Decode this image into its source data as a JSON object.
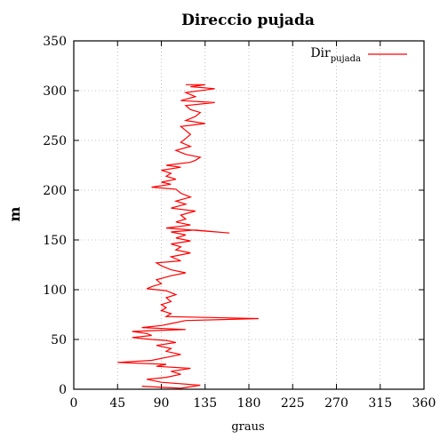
{
  "chart_data": {
    "type": "line",
    "title": "Direccio pujada",
    "xlabel": "graus",
    "ylabel": "m",
    "xlim": [
      0,
      360
    ],
    "ylim": [
      0,
      350
    ],
    "xticks": [
      0,
      45,
      90,
      135,
      180,
      225,
      270,
      315,
      360
    ],
    "yticks": [
      0,
      50,
      100,
      150,
      200,
      250,
      300,
      350
    ],
    "grid": true,
    "legend_position": "top-right",
    "series": [
      {
        "name": "Dir",
        "name_subscript": "pujada",
        "color": "#ff0000",
        "points": [
          [
            70,
            3
          ],
          [
            110,
            1
          ],
          [
            130,
            4
          ],
          [
            90,
            7
          ],
          [
            75,
            10
          ],
          [
            95,
            12
          ],
          [
            110,
            15
          ],
          [
            100,
            18
          ],
          [
            120,
            21
          ],
          [
            85,
            23
          ],
          [
            95,
            25
          ],
          [
            45,
            27
          ],
          [
            80,
            29
          ],
          [
            95,
            32
          ],
          [
            110,
            35
          ],
          [
            95,
            38
          ],
          [
            100,
            41
          ],
          [
            85,
            44
          ],
          [
            105,
            47
          ],
          [
            95,
            49
          ],
          [
            80,
            50
          ],
          [
            60,
            52
          ],
          [
            80,
            54
          ],
          [
            75,
            56
          ],
          [
            60,
            58
          ],
          [
            85,
            59
          ],
          [
            115,
            60
          ],
          [
            70,
            62
          ],
          [
            90,
            64
          ],
          [
            100,
            66
          ],
          [
            115,
            69
          ],
          [
            190,
            71
          ],
          [
            95,
            73
          ],
          [
            100,
            76
          ],
          [
            90,
            79
          ],
          [
            95,
            82
          ],
          [
            90,
            85
          ],
          [
            100,
            88
          ],
          [
            95,
            92
          ],
          [
            105,
            95
          ],
          [
            95,
            99
          ],
          [
            75,
            101
          ],
          [
            80,
            103
          ],
          [
            90,
            106
          ],
          [
            85,
            110
          ],
          [
            100,
            114
          ],
          [
            115,
            117
          ],
          [
            100,
            120
          ],
          [
            90,
            124
          ],
          [
            85,
            127
          ],
          [
            110,
            129
          ],
          [
            100,
            133
          ],
          [
            120,
            137
          ],
          [
            105,
            140
          ],
          [
            110,
            143
          ],
          [
            100,
            146
          ],
          [
            120,
            149
          ],
          [
            105,
            152
          ],
          [
            115,
            155
          ],
          [
            100,
            158
          ],
          [
            125,
            160
          ],
          [
            160,
            157
          ],
          [
            95,
            162
          ],
          [
            120,
            165
          ],
          [
            105,
            168
          ],
          [
            115,
            171
          ],
          [
            110,
            175
          ],
          [
            125,
            179
          ],
          [
            100,
            182
          ],
          [
            115,
            186
          ],
          [
            105,
            189
          ],
          [
            120,
            193
          ],
          [
            110,
            197
          ],
          [
            105,
            201
          ],
          [
            80,
            203
          ],
          [
            100,
            206
          ],
          [
            90,
            208
          ],
          [
            105,
            211
          ],
          [
            95,
            214
          ],
          [
            100,
            217
          ],
          [
            90,
            220
          ],
          [
            110,
            223
          ],
          [
            95,
            225
          ],
          [
            120,
            228
          ],
          [
            125,
            230
          ],
          [
            130,
            233
          ],
          [
            115,
            236
          ],
          [
            105,
            240
          ],
          [
            120,
            244
          ],
          [
            110,
            248
          ],
          [
            115,
            252
          ],
          [
            120,
            256
          ],
          [
            115,
            260
          ],
          [
            110,
            264
          ],
          [
            135,
            267
          ],
          [
            115,
            270
          ],
          [
            125,
            274
          ],
          [
            130,
            278
          ],
          [
            120,
            281
          ],
          [
            115,
            285
          ],
          [
            145,
            288
          ],
          [
            110,
            290
          ],
          [
            125,
            294
          ],
          [
            115,
            298
          ],
          [
            145,
            302
          ],
          [
            120,
            304
          ],
          [
            135,
            306
          ],
          [
            115,
            306
          ]
        ]
      }
    ]
  }
}
